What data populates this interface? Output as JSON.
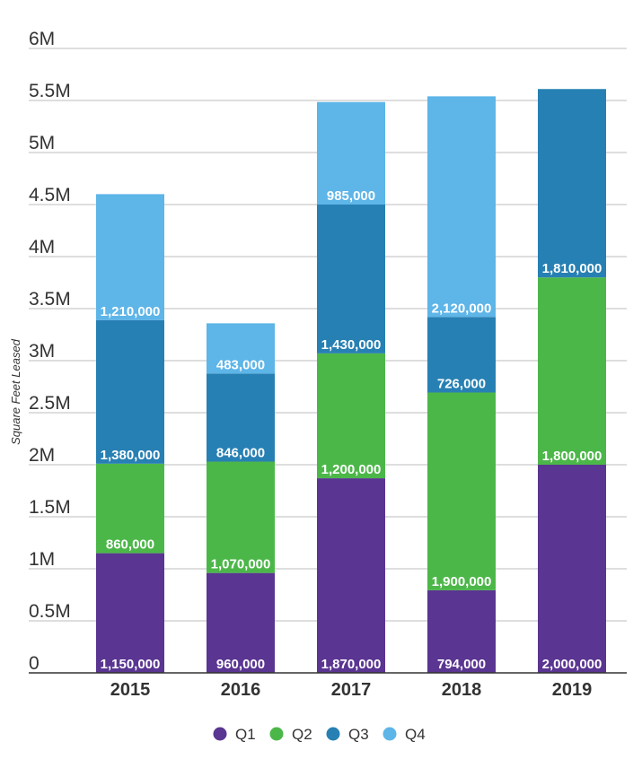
{
  "chart_data": {
    "type": "bar",
    "stacked": true,
    "ylabel": "Square Feet Leased",
    "xlabel": "",
    "ylim": [
      0,
      6000000
    ],
    "yticks": [
      {
        "value": 0,
        "label": "0"
      },
      {
        "value": 500000,
        "label": "0.5M"
      },
      {
        "value": 1000000,
        "label": "1M"
      },
      {
        "value": 1500000,
        "label": "1.5M"
      },
      {
        "value": 2000000,
        "label": "2M"
      },
      {
        "value": 2500000,
        "label": "2.5M"
      },
      {
        "value": 3000000,
        "label": "3M"
      },
      {
        "value": 3500000,
        "label": "3.5M"
      },
      {
        "value": 4000000,
        "label": "4M"
      },
      {
        "value": 4500000,
        "label": "4.5M"
      },
      {
        "value": 5000000,
        "label": "5M"
      },
      {
        "value": 5500000,
        "label": "5.5M"
      },
      {
        "value": 6000000,
        "label": "6M"
      }
    ],
    "categories": [
      "2015",
      "2016",
      "2017",
      "2018",
      "2019"
    ],
    "series": [
      {
        "name": "Q1",
        "color": "#5a3591",
        "values": [
          1150000,
          960000,
          1870000,
          794000,
          2000000
        ],
        "labels": [
          "1,150,000",
          "960,000",
          "1,870,000",
          "794,000",
          "2,000,000"
        ]
      },
      {
        "name": "Q2",
        "color": "#4cb749",
        "values": [
          860000,
          1070000,
          1200000,
          1900000,
          1800000
        ],
        "labels": [
          "860,000",
          "1,070,000",
          "1,200,000",
          "1,900,000",
          "1,800,000"
        ]
      },
      {
        "name": "Q3",
        "color": "#2780b3",
        "values": [
          1380000,
          846000,
          1430000,
          726000,
          1810000
        ],
        "labels": [
          "1,380,000",
          "846,000",
          "1,430,000",
          "726,000",
          "1,810,000"
        ]
      },
      {
        "name": "Q4",
        "color": "#5db5e8",
        "values": [
          1210000,
          483000,
          985000,
          2120000,
          null
        ],
        "labels": [
          "1,210,000",
          "483,000",
          "985,000",
          "2,120,000",
          null
        ]
      }
    ],
    "grid": true,
    "legend": "bottom"
  }
}
